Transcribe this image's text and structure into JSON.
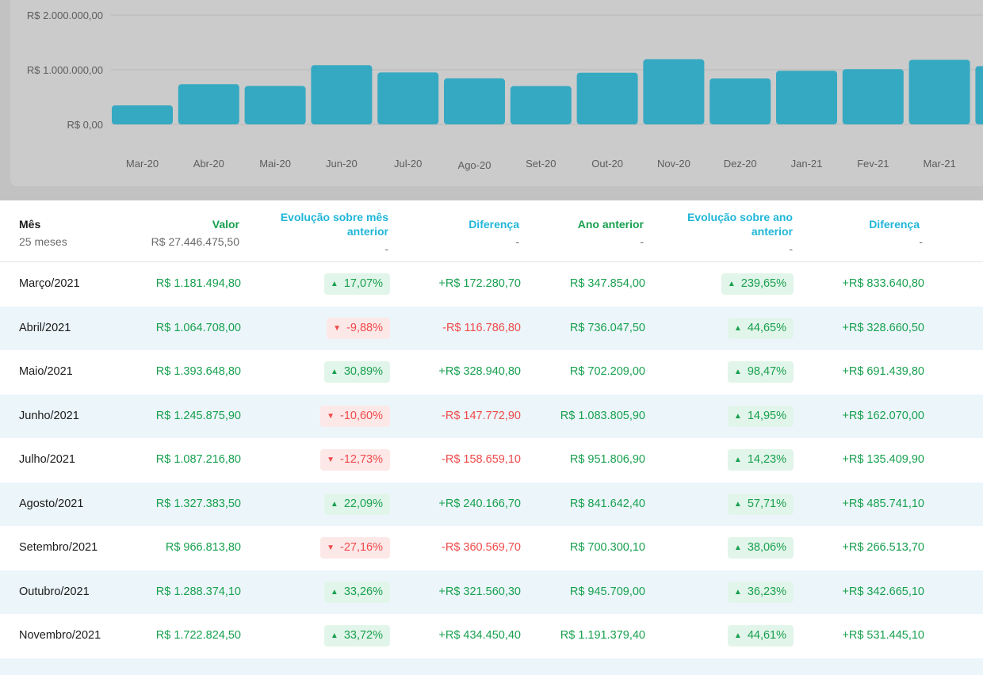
{
  "chart": {
    "y_ticks": [
      "R$ 2.000.000,00",
      "R$ 1.000.000,00",
      "R$ 0,00"
    ],
    "color_bar": "#36a9c2"
  },
  "chart_data": {
    "type": "bar",
    "categories": [
      "Mar-20",
      "Abr-20",
      "Mai-20",
      "Jun-20",
      "Jul-20",
      "Ago-20",
      "Set-20",
      "Out-20",
      "Nov-20",
      "Dez-20",
      "Jan-21",
      "Fev-21",
      "Mar-21"
    ],
    "values": [
      347854.0,
      736047.5,
      702209.0,
      1083805.9,
      951806.9,
      841642.4,
      700300.1,
      945709.0,
      1191379.4,
      840000,
      980000,
      1010000,
      1181494.8
    ],
    "ylim": [
      0,
      2000000
    ],
    "grid": true,
    "xlabel": "",
    "ylabel": "",
    "title": ""
  },
  "table": {
    "header": {
      "mes": "Mês",
      "mes_sub": "25 meses",
      "valor": "Valor",
      "valor_sub": "R$ 27.446.475,50",
      "evo_mes_1": "Evolução sobre mês",
      "evo_mes_2": "anterior",
      "evo_mes_sub": "-",
      "dif1": "Diferença",
      "dif1_sub": "-",
      "ano": "Ano anterior",
      "ano_sub": "-",
      "evo_ano_1": "Evolução sobre ano",
      "evo_ano_2": "anterior",
      "evo_ano_sub": "-",
      "dif2": "Diferença",
      "dif2_sub": "-"
    },
    "rows": [
      {
        "mes": "Março/2021",
        "valor": "R$ 1.181.494,80",
        "evo_mes": "17,07%",
        "evo_mes_dir": "up",
        "dif1": "+R$ 172.280,70",
        "ano": "R$ 347.854,00",
        "evo_ano": "239,65%",
        "evo_ano_dir": "up",
        "dif2": "+R$ 833.640,80"
      },
      {
        "mes": "Abril/2021",
        "valor": "R$ 1.064.708,00",
        "evo_mes": "-9,88%",
        "evo_mes_dir": "down",
        "dif1": "-R$ 116.786,80",
        "ano": "R$ 736.047,50",
        "evo_ano": "44,65%",
        "evo_ano_dir": "up",
        "dif2": "+R$ 328.660,50"
      },
      {
        "mes": "Maio/2021",
        "valor": "R$ 1.393.648,80",
        "evo_mes": "30,89%",
        "evo_mes_dir": "up",
        "dif1": "+R$ 328.940,80",
        "ano": "R$ 702.209,00",
        "evo_ano": "98,47%",
        "evo_ano_dir": "up",
        "dif2": "+R$ 691.439,80"
      },
      {
        "mes": "Junho/2021",
        "valor": "R$ 1.245.875,90",
        "evo_mes": "-10,60%",
        "evo_mes_dir": "down",
        "dif1": "-R$ 147.772,90",
        "ano": "R$ 1.083.805,90",
        "evo_ano": "14,95%",
        "evo_ano_dir": "up",
        "dif2": "+R$ 162.070,00"
      },
      {
        "mes": "Julho/2021",
        "valor": "R$ 1.087.216,80",
        "evo_mes": "-12,73%",
        "evo_mes_dir": "down",
        "dif1": "-R$ 158.659,10",
        "ano": "R$ 951.806,90",
        "evo_ano": "14,23%",
        "evo_ano_dir": "up",
        "dif2": "+R$ 135.409,90"
      },
      {
        "mes": "Agosto/2021",
        "valor": "R$ 1.327.383,50",
        "evo_mes": "22,09%",
        "evo_mes_dir": "up",
        "dif1": "+R$ 240.166,70",
        "ano": "R$ 841.642,40",
        "evo_ano": "57,71%",
        "evo_ano_dir": "up",
        "dif2": "+R$ 485.741,10"
      },
      {
        "mes": "Setembro/2021",
        "valor": "R$ 966.813,80",
        "evo_mes": "-27,16%",
        "evo_mes_dir": "down",
        "dif1": "-R$ 360.569,70",
        "ano": "R$ 700.300,10",
        "evo_ano": "38,06%",
        "evo_ano_dir": "up",
        "dif2": "+R$ 266.513,70"
      },
      {
        "mes": "Outubro/2021",
        "valor": "R$ 1.288.374,10",
        "evo_mes": "33,26%",
        "evo_mes_dir": "up",
        "dif1": "+R$ 321.560,30",
        "ano": "R$ 945.709,00",
        "evo_ano": "36,23%",
        "evo_ano_dir": "up",
        "dif2": "+R$ 342.665,10"
      },
      {
        "mes": "Novembro/2021",
        "valor": "R$ 1.722.824,50",
        "evo_mes": "33,72%",
        "evo_mes_dir": "up",
        "dif1": "+R$ 434.450,40",
        "ano": "R$ 1.191.379,40",
        "evo_ano": "44,61%",
        "evo_ano_dir": "up",
        "dif2": "+R$ 531.445,10"
      }
    ]
  }
}
